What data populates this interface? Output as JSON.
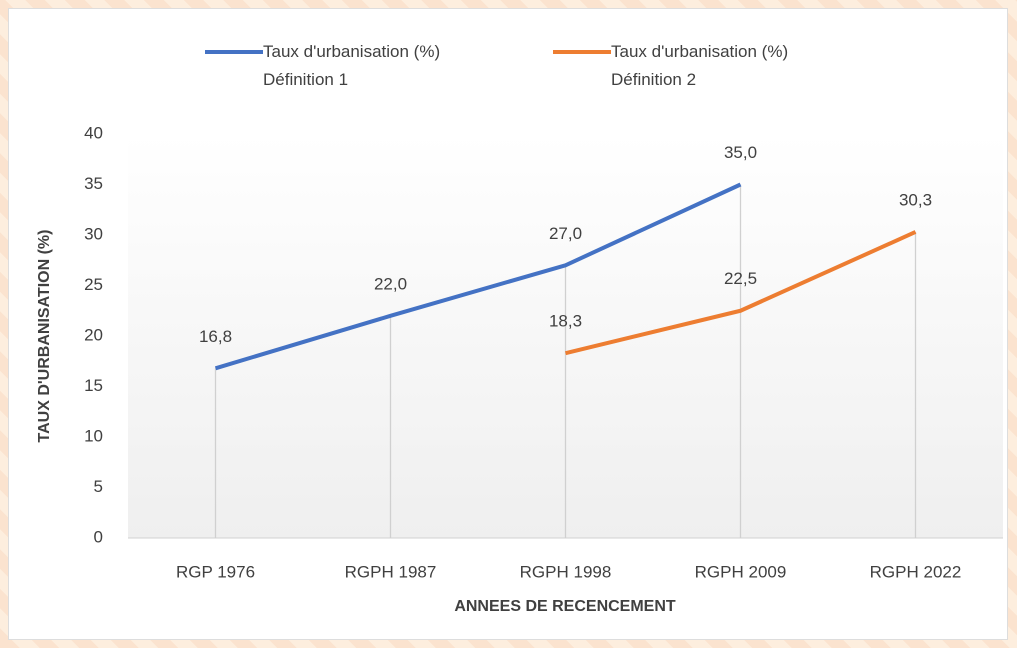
{
  "chart_data": {
    "type": "line",
    "categories": [
      "RGP 1976",
      "RGPH 1987",
      "RGPH 1998",
      "RGPH 2009",
      "RGPH 2022"
    ],
    "series": [
      {
        "name": "Taux d'urbanisation (%) Définition 1",
        "color": "#4472c4",
        "values": [
          16.8,
          22.0,
          27.0,
          35.0,
          null
        ],
        "value_labels": [
          "16,8",
          "22,0",
          "27,0",
          "35,0",
          null
        ]
      },
      {
        "name": "Taux d'urbanisation (%) Définition 2",
        "color": "#ed7d31",
        "values": [
          null,
          null,
          18.3,
          22.5,
          30.3
        ],
        "value_labels": [
          null,
          null,
          "18,3",
          "22,5",
          "30,3"
        ]
      }
    ],
    "ylim": [
      0,
      40
    ],
    "yticks": [
      0,
      5,
      10,
      15,
      20,
      25,
      30,
      35,
      40
    ],
    "ylabel": "TAUX D'URBANISATION (%)",
    "xlabel": "ANNEES DE RECENCEMENT",
    "legend": "top",
    "drop_lines": true
  }
}
